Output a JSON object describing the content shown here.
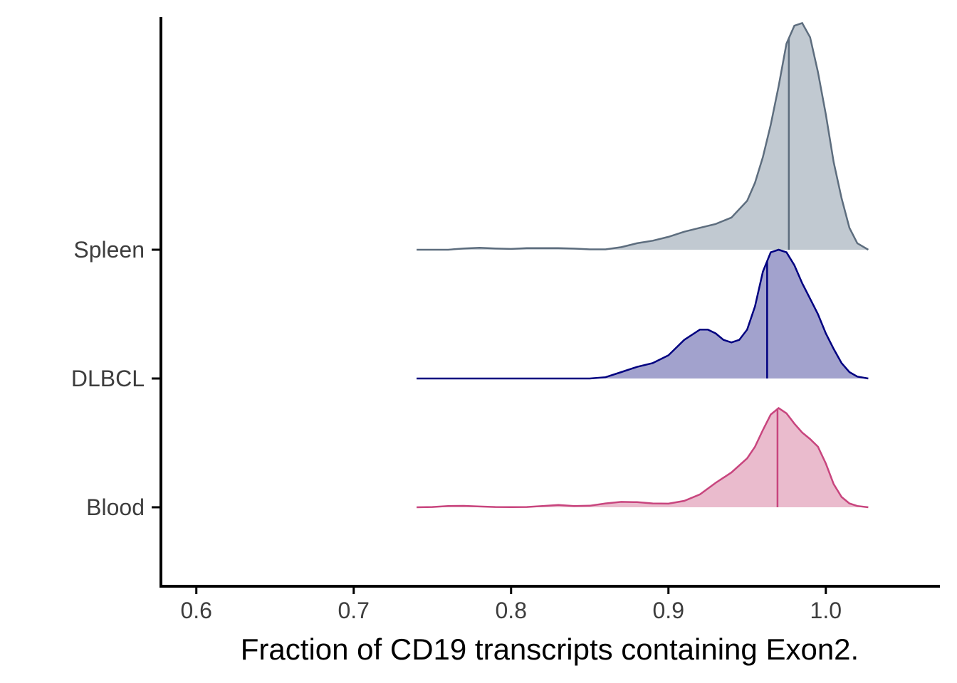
{
  "chart_data": {
    "type": "ridgeline",
    "title": "",
    "xlabel": "Fraction of CD19 transcripts containing Exon2.",
    "ylabel": "",
    "xlim": [
      0.5775,
      1.0725
    ],
    "x_ticks": [
      0.6,
      0.7,
      0.8,
      0.9,
      1.0
    ],
    "x_tick_labels": [
      "0.6",
      "0.7",
      "0.8",
      "0.9",
      "1.0"
    ],
    "categories": [
      "Blood",
      "DLBCL",
      "Spleen"
    ],
    "grid": false,
    "legend": "none",
    "series": [
      {
        "category": "Blood",
        "color": "#c8457e",
        "fill": "#e8b5c9",
        "median": 0.9693,
        "density": [
          [
            0.74,
            0.0
          ],
          [
            0.75,
            0.002
          ],
          [
            0.76,
            0.01
          ],
          [
            0.77,
            0.011
          ],
          [
            0.78,
            0.006
          ],
          [
            0.79,
            0.002
          ],
          [
            0.8,
            0.001
          ],
          [
            0.81,
            0.002
          ],
          [
            0.82,
            0.01
          ],
          [
            0.83,
            0.018
          ],
          [
            0.84,
            0.01
          ],
          [
            0.85,
            0.012
          ],
          [
            0.86,
            0.03
          ],
          [
            0.87,
            0.042
          ],
          [
            0.88,
            0.04
          ],
          [
            0.89,
            0.03
          ],
          [
            0.9,
            0.028
          ],
          [
            0.91,
            0.05
          ],
          [
            0.92,
            0.1
          ],
          [
            0.93,
            0.19
          ],
          [
            0.94,
            0.27
          ],
          [
            0.95,
            0.38
          ],
          [
            0.955,
            0.47
          ],
          [
            0.96,
            0.6
          ],
          [
            0.965,
            0.72
          ],
          [
            0.97,
            0.77
          ],
          [
            0.975,
            0.73
          ],
          [
            0.98,
            0.65
          ],
          [
            0.985,
            0.58
          ],
          [
            0.99,
            0.53
          ],
          [
            0.995,
            0.47
          ],
          [
            1.0,
            0.34
          ],
          [
            1.005,
            0.18
          ],
          [
            1.01,
            0.08
          ],
          [
            1.015,
            0.03
          ],
          [
            1.02,
            0.01
          ],
          [
            1.027,
            0.0
          ]
        ]
      },
      {
        "category": "DLBCL",
        "color": "#000080",
        "fill": "#9a9ac9",
        "median": 0.9627,
        "density": [
          [
            0.74,
            0.0
          ],
          [
            0.8,
            0.0
          ],
          [
            0.85,
            0.0
          ],
          [
            0.86,
            0.01
          ],
          [
            0.87,
            0.05
          ],
          [
            0.88,
            0.09
          ],
          [
            0.89,
            0.12
          ],
          [
            0.9,
            0.18
          ],
          [
            0.91,
            0.3
          ],
          [
            0.92,
            0.38
          ],
          [
            0.925,
            0.38
          ],
          [
            0.93,
            0.35
          ],
          [
            0.935,
            0.3
          ],
          [
            0.94,
            0.28
          ],
          [
            0.945,
            0.3
          ],
          [
            0.95,
            0.38
          ],
          [
            0.955,
            0.56
          ],
          [
            0.96,
            0.83
          ],
          [
            0.965,
            0.98
          ],
          [
            0.97,
            1.0
          ],
          [
            0.975,
            0.98
          ],
          [
            0.98,
            0.88
          ],
          [
            0.985,
            0.74
          ],
          [
            0.99,
            0.62
          ],
          [
            0.995,
            0.5
          ],
          [
            1.0,
            0.35
          ],
          [
            1.005,
            0.23
          ],
          [
            1.01,
            0.12
          ],
          [
            1.015,
            0.05
          ],
          [
            1.02,
            0.015
          ],
          [
            1.027,
            0.0
          ]
        ]
      },
      {
        "category": "Spleen",
        "color": "#5d6d7e",
        "fill": "#bcc4cd",
        "median": 0.9765,
        "density": [
          [
            0.74,
            0.0
          ],
          [
            0.76,
            0.0
          ],
          [
            0.77,
            0.01
          ],
          [
            0.78,
            0.015
          ],
          [
            0.79,
            0.01
          ],
          [
            0.8,
            0.006
          ],
          [
            0.81,
            0.012
          ],
          [
            0.82,
            0.012
          ],
          [
            0.83,
            0.012
          ],
          [
            0.84,
            0.009
          ],
          [
            0.85,
            0.003
          ],
          [
            0.86,
            0.003
          ],
          [
            0.87,
            0.02
          ],
          [
            0.88,
            0.05
          ],
          [
            0.89,
            0.07
          ],
          [
            0.9,
            0.1
          ],
          [
            0.91,
            0.14
          ],
          [
            0.92,
            0.17
          ],
          [
            0.93,
            0.2
          ],
          [
            0.94,
            0.25
          ],
          [
            0.95,
            0.38
          ],
          [
            0.955,
            0.52
          ],
          [
            0.96,
            0.72
          ],
          [
            0.965,
            0.97
          ],
          [
            0.97,
            1.27
          ],
          [
            0.975,
            1.6
          ],
          [
            0.98,
            1.74
          ],
          [
            0.985,
            1.76
          ],
          [
            0.99,
            1.65
          ],
          [
            0.995,
            1.38
          ],
          [
            1.0,
            1.05
          ],
          [
            1.005,
            0.68
          ],
          [
            1.01,
            0.4
          ],
          [
            1.015,
            0.17
          ],
          [
            1.02,
            0.05
          ],
          [
            1.027,
            0.0
          ]
        ]
      }
    ]
  }
}
